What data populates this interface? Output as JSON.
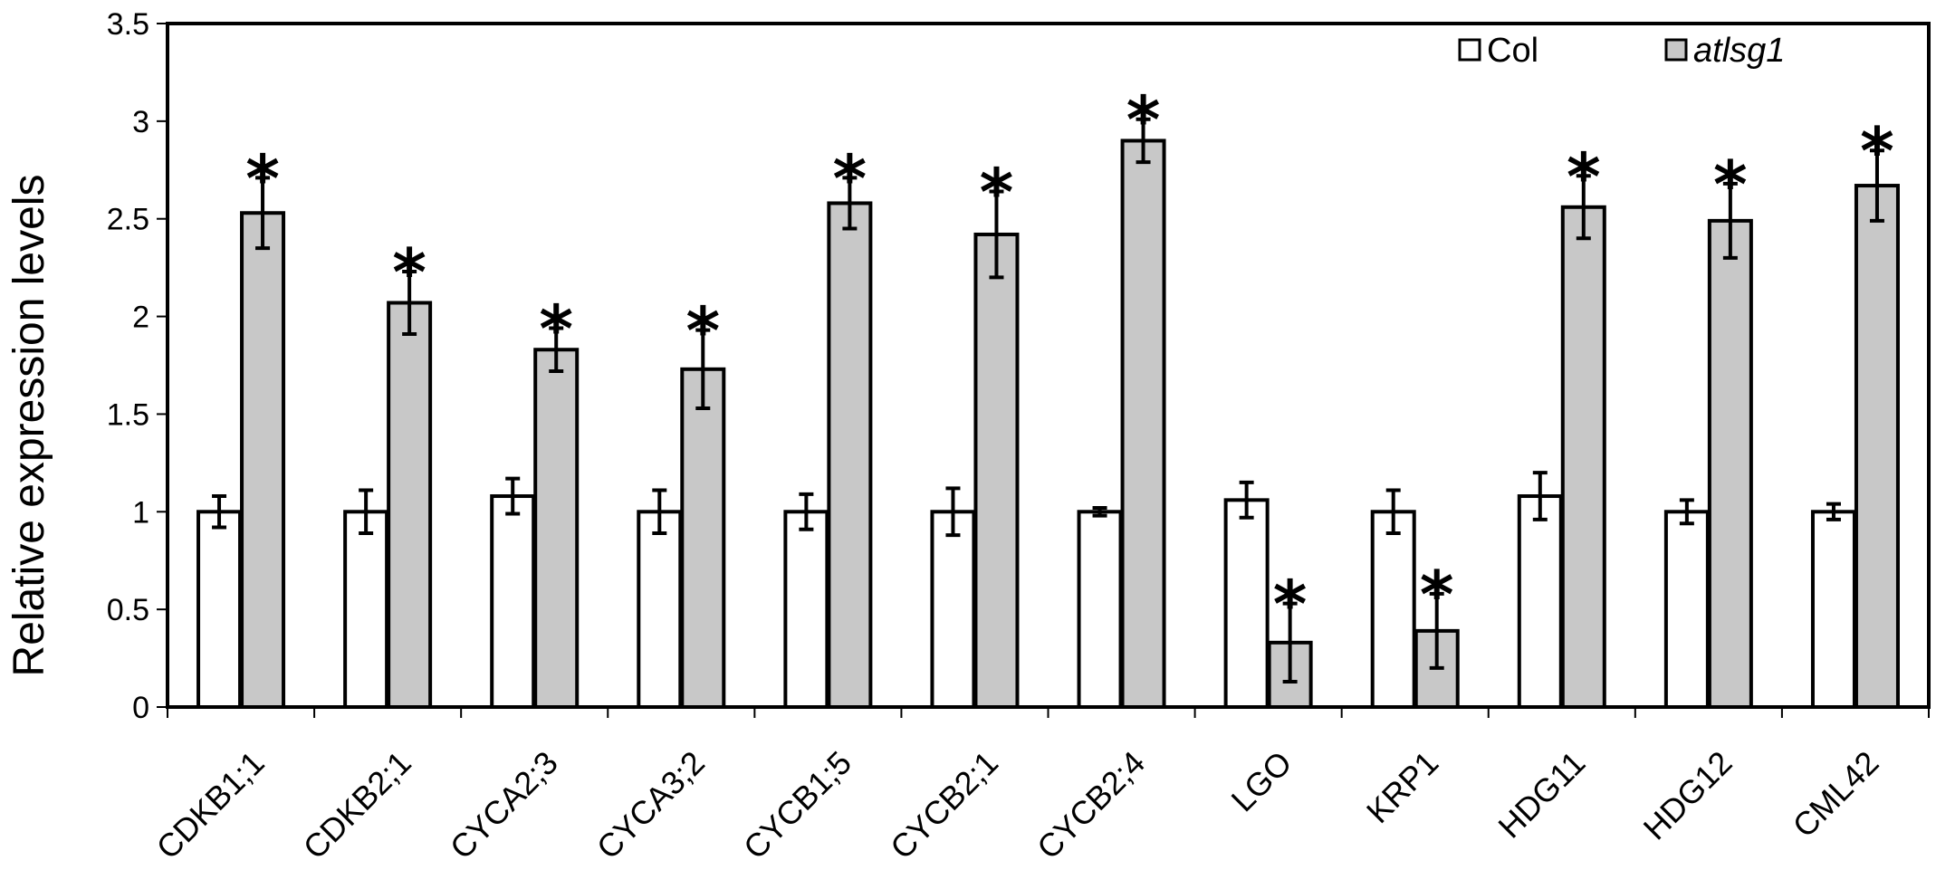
{
  "chart_data": {
    "type": "bar",
    "title": "",
    "xlabel": "",
    "ylabel": "Relative expression levels",
    "ylim": [
      0,
      3.5
    ],
    "yticks": [
      "0",
      "0.5",
      "1",
      "1.5",
      "2",
      "2.5",
      "3",
      "3.5"
    ],
    "grid": false,
    "legend_position": "top-right",
    "categories": [
      "CDKB1;1",
      "CDKB2;1",
      "CYCA2;3",
      "CYCA3;2",
      "CYCB1;5",
      "CYCB2;1",
      "CYCB2;4",
      "LGO",
      "KRP1",
      "HDG11",
      "HDG12",
      "CML42"
    ],
    "series": [
      {
        "name": "Col",
        "color": "#ffffff",
        "values": [
          1.0,
          1.0,
          1.08,
          1.0,
          1.0,
          1.0,
          1.0,
          1.06,
          1.0,
          1.08,
          1.0,
          1.0
        ],
        "errors": [
          0.08,
          0.11,
          0.09,
          0.11,
          0.09,
          0.12,
          0.02,
          0.09,
          0.11,
          0.12,
          0.06,
          0.04
        ],
        "significant": [
          false,
          false,
          false,
          false,
          false,
          false,
          false,
          false,
          false,
          false,
          false,
          false
        ]
      },
      {
        "name": "atlsg1",
        "color": "#c8c8c8",
        "values": [
          2.53,
          2.07,
          1.83,
          1.73,
          2.58,
          2.42,
          2.9,
          0.33,
          0.39,
          2.56,
          2.49,
          2.67
        ],
        "errors": [
          0.18,
          0.16,
          0.11,
          0.2,
          0.13,
          0.22,
          0.11,
          0.2,
          0.19,
          0.16,
          0.19,
          0.18
        ],
        "significant": [
          true,
          true,
          true,
          true,
          true,
          true,
          true,
          true,
          true,
          true,
          true,
          true
        ]
      }
    ],
    "significance_marker": "*"
  }
}
